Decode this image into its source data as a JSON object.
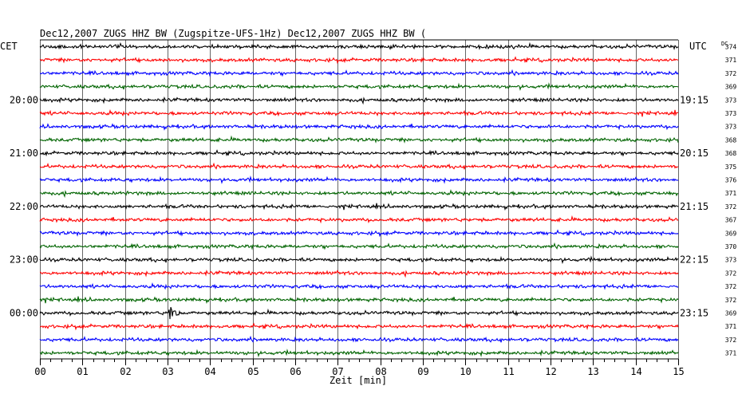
{
  "header": {
    "title": "Dec12,2007   ZUGS HHZ BW (Zugspitze-UFS-1Hz) Dec12,2007   ZUGS HHZ BW ("
  },
  "chart_data": {
    "type": "line",
    "chart_kind": "helicorder",
    "left_axis_label": "CET",
    "right_axis_label": "UTC",
    "dc_label": "DC",
    "xlabel": "Zeit [min]",
    "x_range": [
      0,
      15
    ],
    "x_ticks": [
      "00",
      "01",
      "02",
      "03",
      "04",
      "05",
      "06",
      "07",
      "08",
      "09",
      "10",
      "11",
      "12",
      "13",
      "14",
      "15"
    ],
    "traces_per_hour": 4,
    "trace_colors": [
      "#000000",
      "#ff0000",
      "#0000ff",
      "#006400"
    ],
    "cet_hour_labels": [
      {
        "trace": 4,
        "text": "20:00"
      },
      {
        "trace": 8,
        "text": "21:00"
      },
      {
        "trace": 12,
        "text": "22:00"
      },
      {
        "trace": 16,
        "text": "23:00"
      },
      {
        "trace": 20,
        "text": "00:00"
      }
    ],
    "utc_hour_labels": [
      {
        "trace": 4,
        "text": "19:15"
      },
      {
        "trace": 8,
        "text": "20:15"
      },
      {
        "trace": 12,
        "text": "21:15"
      },
      {
        "trace": 16,
        "text": "22:15"
      },
      {
        "trace": 20,
        "text": "23:15"
      }
    ],
    "dc_offsets": [
      374,
      371,
      372,
      369,
      373,
      373,
      373,
      368,
      368,
      375,
      376,
      371,
      372,
      367,
      369,
      370,
      373,
      372,
      372,
      372,
      369,
      371,
      372,
      371
    ],
    "events": [
      {
        "trace": 20,
        "minute": 3.05,
        "label": ""
      }
    ]
  },
  "colors": {
    "background": "#ffffff",
    "grid": "#000000"
  }
}
